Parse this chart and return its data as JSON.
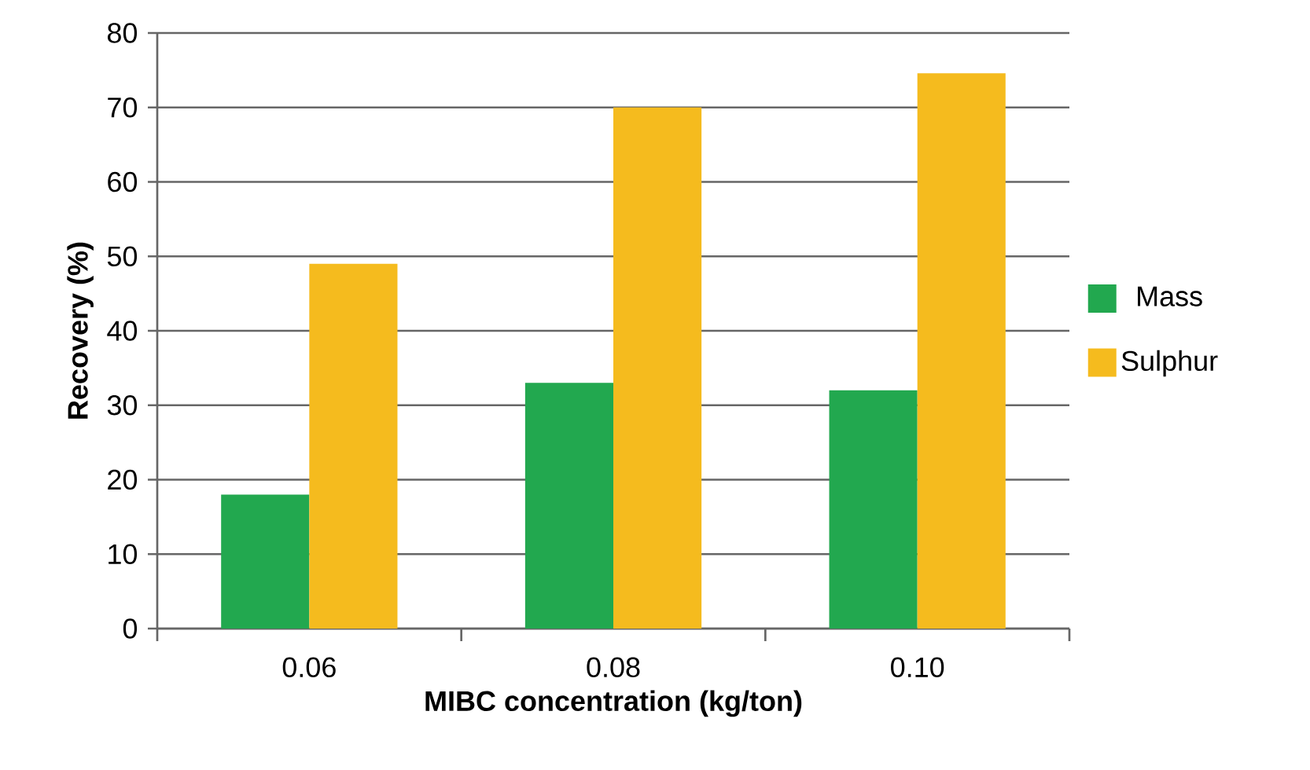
{
  "chart_data": {
    "type": "bar",
    "xlabel": "MIBC concentration (kg/ton)",
    "ylabel": "Recovery (%)",
    "categories": [
      "0.06",
      "0.08",
      "0.10"
    ],
    "series": [
      {
        "name": "Mass",
        "color": "#22a84f",
        "values": [
          18,
          33,
          32
        ]
      },
      {
        "name": "Sulphur",
        "color": "#f5bb1e",
        "values": [
          49,
          70,
          74.6
        ]
      }
    ],
    "ylim": [
      0,
      80
    ],
    "yticks": [
      0,
      10,
      20,
      30,
      40,
      50,
      60,
      70,
      80
    ],
    "grid": "y",
    "legend": "right"
  }
}
